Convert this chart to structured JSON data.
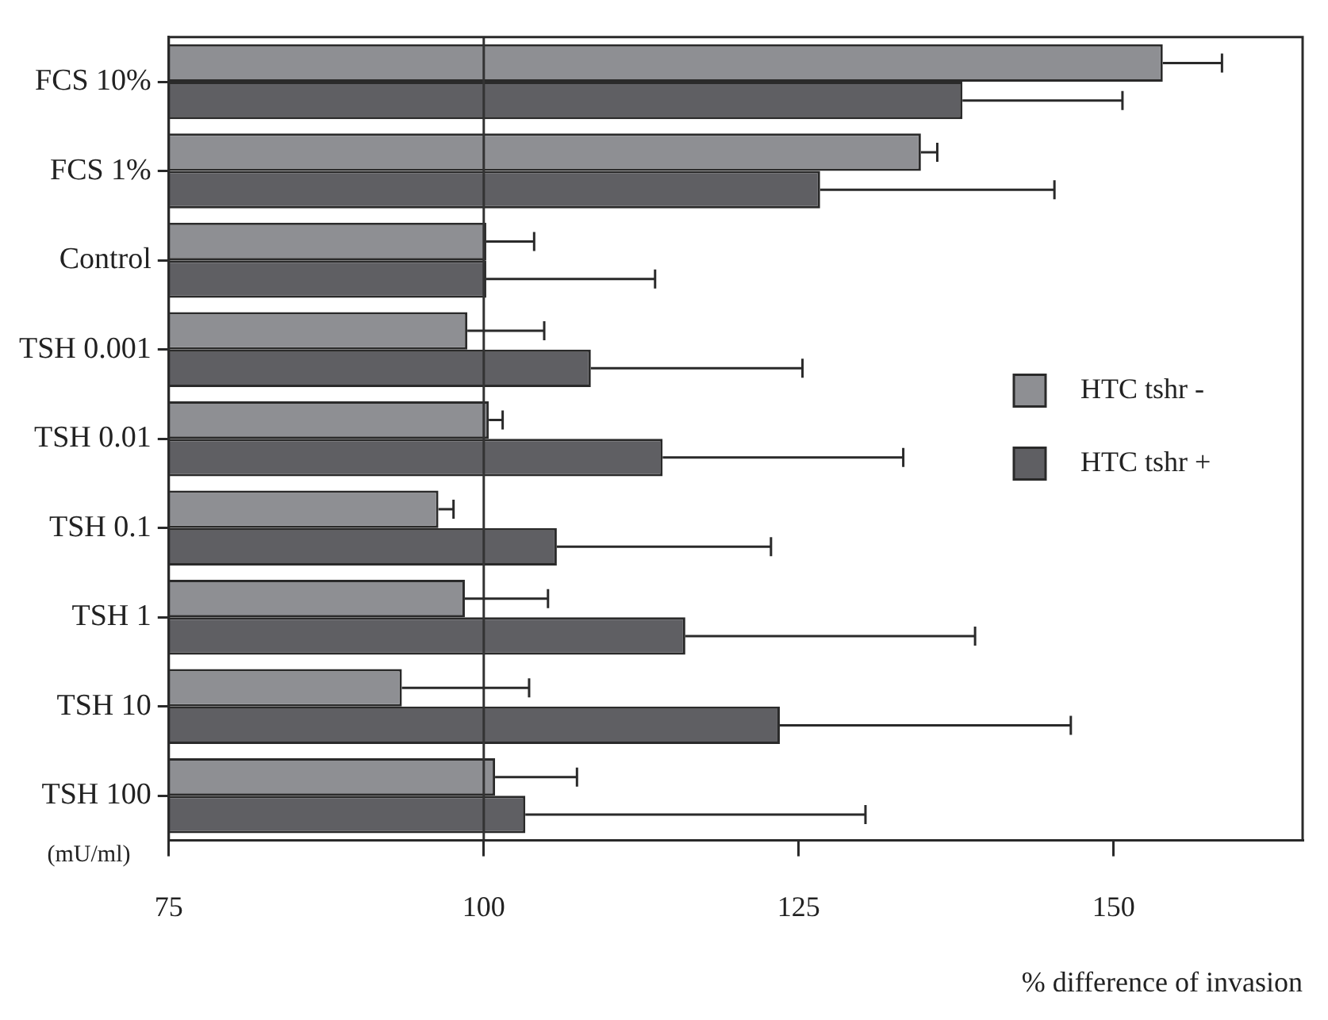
{
  "chart_data": {
    "type": "bar",
    "orientation": "horizontal",
    "xlabel": "% difference of invasion",
    "categories": [
      "FCS 10%",
      "FCS 1%",
      "Control",
      "TSH 0.001",
      "TSH 0.01",
      "TSH 0.1",
      "TSH 1",
      "TSH 10",
      "TSH 100"
    ],
    "series": [
      {
        "name": "HTC tshr -",
        "color": "#8e8f93",
        "values": [
          153.9,
          134.7,
          100.2,
          98.7,
          100.4,
          96.4,
          98.5,
          93.5,
          100.9
        ],
        "errors": [
          [
            153.9,
            158.6
          ],
          [
            134.7,
            136
          ],
          [
            100.2,
            104
          ],
          [
            98.7,
            104.8
          ],
          [
            100.4,
            101.5
          ],
          [
            96.4,
            97.6
          ],
          [
            98.5,
            105.1
          ],
          [
            93.5,
            103.6
          ],
          [
            100.9,
            107.4
          ]
        ]
      },
      {
        "name": "HTC tshr +",
        "color": "#5f5f63",
        "values": [
          138,
          126.7,
          100.2,
          108.5,
          114.2,
          105.8,
          116,
          123.5,
          103.3
        ],
        "errors": [
          [
            138,
            150.7
          ],
          [
            126.7,
            145.3
          ],
          [
            100.2,
            113.6
          ],
          [
            108.5,
            125.3
          ],
          [
            114.2,
            133.3
          ],
          [
            105.8,
            122.8
          ],
          [
            116,
            139
          ],
          [
            123.5,
            146.6
          ],
          [
            103.3,
            130.3
          ]
        ]
      }
    ],
    "xlim": [
      75,
      165
    ],
    "xticks": [
      75,
      100,
      125,
      150
    ],
    "ref_lines": [
      {
        "axis": "x",
        "value": 100,
        "color": "#333333"
      }
    ],
    "grid": false,
    "legend": "right",
    "annotations": [
      "(mU/ml)"
    ]
  }
}
